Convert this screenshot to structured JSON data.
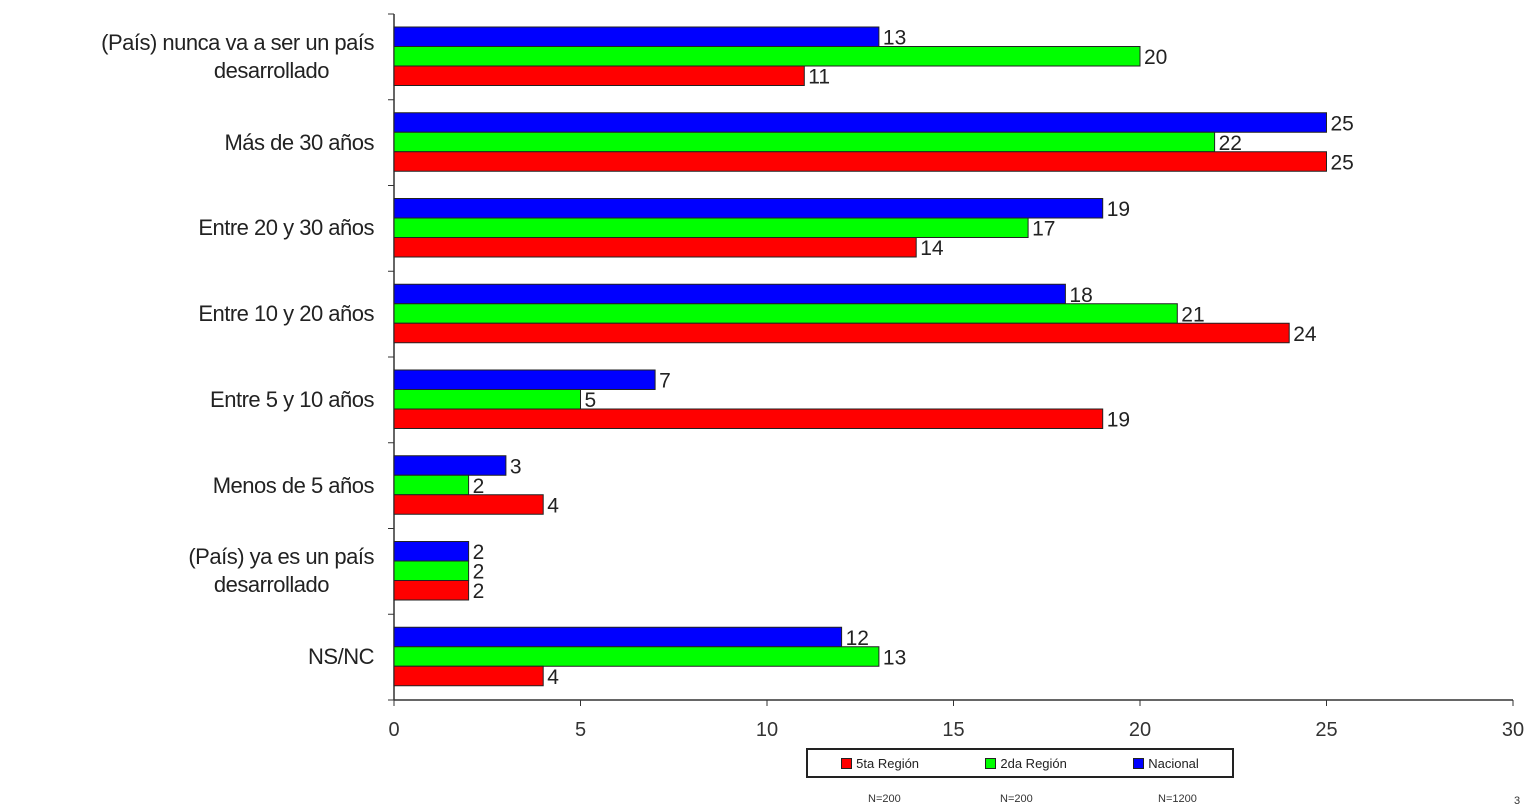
{
  "chart_data": {
    "type": "bar",
    "orientation": "horizontal",
    "categories": [
      "(País) nunca va a ser un país desarrollado",
      "Más de 30 años",
      "Entre 20 y 30 años",
      "Entre 10 y 20 años",
      "Entre 5 y 10 años",
      "Menos de 5 años",
      "(País) ya es un país desarrollado",
      "NS/NC"
    ],
    "series": [
      {
        "name": "Nacional",
        "color": "#0000ff",
        "values": [
          13,
          25,
          19,
          18,
          7,
          3,
          2,
          12
        ]
      },
      {
        "name": "2da Región",
        "color": "#00ff00",
        "values": [
          20,
          22,
          17,
          21,
          5,
          2,
          2,
          13
        ]
      },
      {
        "name": "5ta Región",
        "color": "#ff0000",
        "values": [
          11,
          25,
          14,
          24,
          19,
          4,
          2,
          4
        ]
      }
    ],
    "xlim": [
      0,
      30
    ],
    "xticks": [
      0,
      5,
      10,
      15,
      20,
      25,
      30
    ],
    "grid": false,
    "legend": {
      "position": "bottom",
      "entries": [
        {
          "name": "5ta Región",
          "color": "#ff0000"
        },
        {
          "name": "2da Región",
          "color": "#00ff00"
        },
        {
          "name": "Nacional",
          "color": "#0000ff"
        }
      ],
      "sample_sizes": [
        "N=200",
        "N=200",
        "N=1200"
      ]
    }
  },
  "footer": {
    "page_number": "3"
  }
}
